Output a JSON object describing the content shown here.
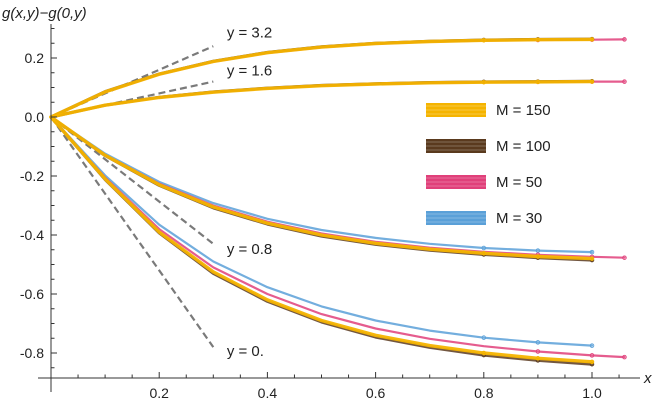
{
  "chart_data": {
    "type": "line",
    "ylabel": "g(x,y)−g(0,y)",
    "xlabel": "x",
    "xlim": [
      0,
      1.08
    ],
    "ylim": [
      -0.9,
      0.32
    ],
    "x_ticks": [
      0.2,
      0.4,
      0.6,
      0.8,
      1.0
    ],
    "x_tick_labels": [
      "0.2",
      "0.4",
      "0.6",
      "0.8",
      "1.0"
    ],
    "y_ticks": [
      0.2,
      0.0,
      -0.2,
      -0.4,
      -0.6,
      -0.8
    ],
    "y_tick_labels": [
      "0.2",
      "0.0",
      "-0.2",
      "-0.4",
      "-0.6",
      "-0.8"
    ],
    "grid": false,
    "legend_position": "right",
    "legend": [
      {
        "label": "M = 150",
        "color": "#f5b400"
      },
      {
        "label": "M = 100",
        "color": "#5a3a1e"
      },
      {
        "label": "M = 50",
        "color": "#e0407a"
      },
      {
        "label": "M = 30",
        "color": "#5aa0d8"
      }
    ],
    "asymptotes": [
      {
        "label": "y = 3.2",
        "x": [
          0.0,
          0.3
        ],
        "y": [
          0.0,
          0.24
        ]
      },
      {
        "label": "y = 1.6",
        "x": [
          0.0,
          0.3
        ],
        "y": [
          0.0,
          0.12
        ]
      },
      {
        "label": "y = 0.8",
        "x": [
          0.0,
          0.3
        ],
        "y": [
          0.0,
          -0.43
        ]
      },
      {
        "label": "y = 0.",
        "x": [
          0.0,
          0.3
        ],
        "y": [
          0.0,
          -0.78
        ]
      }
    ],
    "annotations": [
      {
        "text": "y = 3.2",
        "x": 0.325,
        "y": 0.27
      },
      {
        "text": "y = 1.6",
        "x": 0.325,
        "y": 0.14
      },
      {
        "text": "y = 0.8",
        "x": 0.325,
        "y": -0.465
      },
      {
        "text": "y = 0.",
        "x": 0.325,
        "y": -0.81
      }
    ],
    "series": [
      {
        "name": "M = 150",
        "curves": [
          {
            "y_param": "3.2",
            "x": [
              0,
              0.1,
              0.2,
              0.3,
              0.4,
              0.5,
              0.6,
              0.7,
              0.8,
              0.9,
              1.0
            ],
            "y": [
              0,
              0.085,
              0.145,
              0.188,
              0.218,
              0.237,
              0.249,
              0.256,
              0.26,
              0.262,
              0.263
            ]
          },
          {
            "y_param": "1.6",
            "x": [
              0,
              0.1,
              0.2,
              0.3,
              0.4,
              0.5,
              0.6,
              0.7,
              0.8,
              0.9,
              1.0
            ],
            "y": [
              0,
              0.04,
              0.066,
              0.084,
              0.097,
              0.106,
              0.112,
              0.116,
              0.118,
              0.119,
              0.12
            ]
          },
          {
            "y_param": "0.8",
            "x": [
              0,
              0.1,
              0.2,
              0.3,
              0.4,
              0.5,
              0.6,
              0.7,
              0.8,
              0.9,
              1.0
            ],
            "y": [
              0,
              -0.13,
              -0.23,
              -0.305,
              -0.36,
              -0.4,
              -0.428,
              -0.448,
              -0.462,
              -0.473,
              -0.48
            ]
          },
          {
            "y_param": "0.",
            "x": [
              0,
              0.1,
              0.2,
              0.3,
              0.4,
              0.5,
              0.6,
              0.7,
              0.8,
              0.9,
              1.0
            ],
            "y": [
              0,
              -0.21,
              -0.39,
              -0.525,
              -0.62,
              -0.69,
              -0.74,
              -0.775,
              -0.8,
              -0.818,
              -0.83
            ]
          }
        ]
      },
      {
        "name": "M = 100",
        "curves": [
          {
            "y_param": "3.2",
            "x": [
              0,
              0.1,
              0.2,
              0.3,
              0.4,
              0.5,
              0.6,
              0.7,
              0.8,
              0.9,
              1.0
            ],
            "y": [
              0,
              0.086,
              0.146,
              0.189,
              0.219,
              0.238,
              0.25,
              0.257,
              0.261,
              0.263,
              0.264
            ]
          },
          {
            "y_param": "1.6",
            "x": [
              0,
              0.1,
              0.2,
              0.3,
              0.4,
              0.5,
              0.6,
              0.7,
              0.8,
              0.9,
              1.0
            ],
            "y": [
              0,
              0.04,
              0.067,
              0.085,
              0.098,
              0.107,
              0.113,
              0.117,
              0.119,
              0.12,
              0.121
            ]
          },
          {
            "y_param": "0.8",
            "x": [
              0,
              0.1,
              0.2,
              0.3,
              0.4,
              0.5,
              0.6,
              0.7,
              0.8,
              0.9,
              1.0
            ],
            "y": [
              0,
              -0.131,
              -0.232,
              -0.308,
              -0.363,
              -0.404,
              -0.432,
              -0.452,
              -0.466,
              -0.477,
              -0.485
            ]
          },
          {
            "y_param": "0.",
            "x": [
              0,
              0.1,
              0.2,
              0.3,
              0.4,
              0.5,
              0.6,
              0.7,
              0.8,
              0.9,
              1.0
            ],
            "y": [
              0,
              -0.212,
              -0.393,
              -0.53,
              -0.625,
              -0.695,
              -0.746,
              -0.781,
              -0.807,
              -0.825,
              -0.838
            ]
          }
        ]
      },
      {
        "name": "M = 50",
        "curves": [
          {
            "y_param": "3.2",
            "x": [
              0,
              0.1,
              0.2,
              0.3,
              0.4,
              0.5,
              0.6,
              0.7,
              0.8,
              0.9,
              1.0,
              1.06
            ],
            "y": [
              0,
              0.084,
              0.144,
              0.187,
              0.217,
              0.236,
              0.248,
              0.255,
              0.259,
              0.261,
              0.262,
              0.263
            ]
          },
          {
            "y_param": "1.6",
            "x": [
              0,
              0.1,
              0.2,
              0.3,
              0.4,
              0.5,
              0.6,
              0.7,
              0.8,
              0.9,
              1.0,
              1.06
            ],
            "y": [
              0,
              0.039,
              0.066,
              0.084,
              0.097,
              0.106,
              0.112,
              0.116,
              0.118,
              0.119,
              0.12,
              0.12
            ]
          },
          {
            "y_param": "0.8",
            "x": [
              0,
              0.1,
              0.2,
              0.3,
              0.4,
              0.5,
              0.6,
              0.7,
              0.8,
              0.9,
              1.0,
              1.06
            ],
            "y": [
              0,
              -0.128,
              -0.226,
              -0.3,
              -0.355,
              -0.395,
              -0.423,
              -0.443,
              -0.457,
              -0.467,
              -0.474,
              -0.477
            ]
          },
          {
            "y_param": "0.",
            "x": [
              0,
              0.1,
              0.2,
              0.3,
              0.4,
              0.5,
              0.6,
              0.7,
              0.8,
              0.9,
              1.0,
              1.06
            ],
            "y": [
              0,
              -0.205,
              -0.38,
              -0.51,
              -0.6,
              -0.668,
              -0.717,
              -0.752,
              -0.777,
              -0.795,
              -0.808,
              -0.814
            ]
          }
        ]
      },
      {
        "name": "M = 30",
        "curves": [
          {
            "y_param": "0.8",
            "x": [
              0,
              0.1,
              0.2,
              0.3,
              0.4,
              0.5,
              0.6,
              0.7,
              0.8,
              0.9,
              1.0
            ],
            "y": [
              0,
              -0.124,
              -0.22,
              -0.292,
              -0.345,
              -0.383,
              -0.41,
              -0.43,
              -0.444,
              -0.453,
              -0.458
            ]
          },
          {
            "y_param": "0.",
            "x": [
              0,
              0.1,
              0.2,
              0.3,
              0.4,
              0.5,
              0.6,
              0.7,
              0.8,
              0.9,
              1.0
            ],
            "y": [
              0,
              -0.198,
              -0.365,
              -0.49,
              -0.577,
              -0.642,
              -0.69,
              -0.724,
              -0.748,
              -0.764,
              -0.775
            ]
          }
        ]
      }
    ]
  }
}
